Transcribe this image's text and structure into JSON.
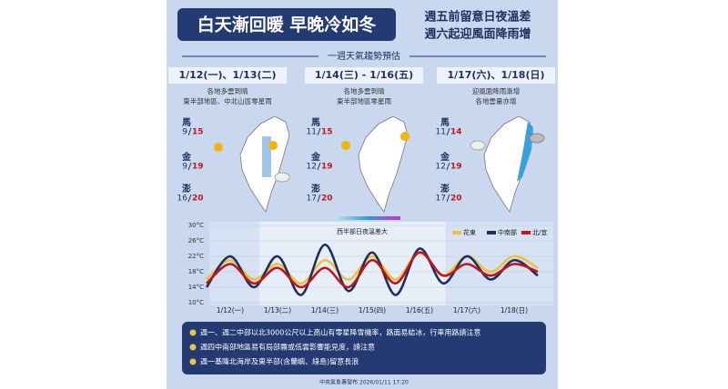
{
  "header": {
    "title": "白天漸回暖 早晚冷如冬",
    "notes": [
      "週五前留意日夜溫差",
      "週六起迎風面降雨增"
    ]
  },
  "subtitle": "一週天氣趨勢預估",
  "islands": [
    "馬",
    "金",
    "澎"
  ],
  "periods": [
    {
      "label": "1/12(一)、1/13(二)",
      "desc": [
        "各地多雲到晴",
        "東半部地區、中北山區零星雨"
      ],
      "temps": [
        {
          "low": 9,
          "high": 15
        },
        {
          "low": 9,
          "high": 19
        },
        {
          "low": 16,
          "high": 20
        }
      ]
    },
    {
      "label": "1/14(三) - 1/16(五)",
      "desc": [
        "各地多雲到晴",
        "東半部地區零星雨"
      ],
      "temps": [
        {
          "low": 11,
          "high": 15
        },
        {
          "low": 12,
          "high": 19
        },
        {
          "low": 17,
          "high": 20
        }
      ]
    },
    {
      "label": "1/17(六)、1/18(日)",
      "desc": [
        "迎風面降雨漸增",
        "各地雲量亦增"
      ],
      "temps": [
        {
          "low": 11,
          "high": 14
        },
        {
          "low": 12,
          "high": 19
        },
        {
          "low": 17,
          "high": 20
        }
      ]
    }
  ],
  "chart_data": {
    "type": "line",
    "annotation": "西半部日夜溫差大",
    "categories": [
      null,
      "1/12(一)",
      null,
      "1/13(二)",
      null,
      "1/14(三)",
      null,
      "1/15(四)",
      null,
      "1/16(五)",
      null,
      "1/17(六)",
      null,
      "1/18(日)",
      null
    ],
    "series": [
      {
        "name": "花東",
        "color": "#e8c440",
        "values": [
          16,
          21,
          16,
          20,
          15,
          21,
          16,
          22,
          16,
          23,
          17,
          22,
          18,
          22,
          19
        ]
      },
      {
        "name": "中南部",
        "color": "#1f2f5c",
        "values": [
          14,
          22,
          14,
          22,
          12,
          25,
          13,
          23,
          12,
          24,
          15,
          22,
          16,
          21,
          17
        ]
      },
      {
        "name": "北/宜",
        "color": "#c0161d",
        "values": [
          15,
          20,
          15,
          19,
          14,
          19,
          14,
          21,
          15,
          23,
          17,
          20,
          17,
          20,
          18
        ]
      }
    ],
    "ylim": [
      10,
      30
    ],
    "yticks": [
      {
        "value": 10,
        "label": "10°C"
      },
      {
        "value": 14,
        "label": "14°C"
      },
      {
        "value": 18,
        "label": "18°C"
      },
      {
        "value": 22,
        "label": "22°C"
      },
      {
        "value": 26,
        "label": "26°C"
      },
      {
        "value": 30,
        "label": "30°C"
      }
    ]
  },
  "bullets": [
    "週一、週二中部以北3000公尺以上高山有零星降雪機率，路面易結冰，行車用路請注意",
    "週四中南部地區易有局部霧或低雲影響能見度，請注意",
    "週一基隆北海岸及東半部(含蘭嶼、綠島)留意長浪"
  ],
  "footer": "中央氣象署發布 2026/01/11 17:20"
}
